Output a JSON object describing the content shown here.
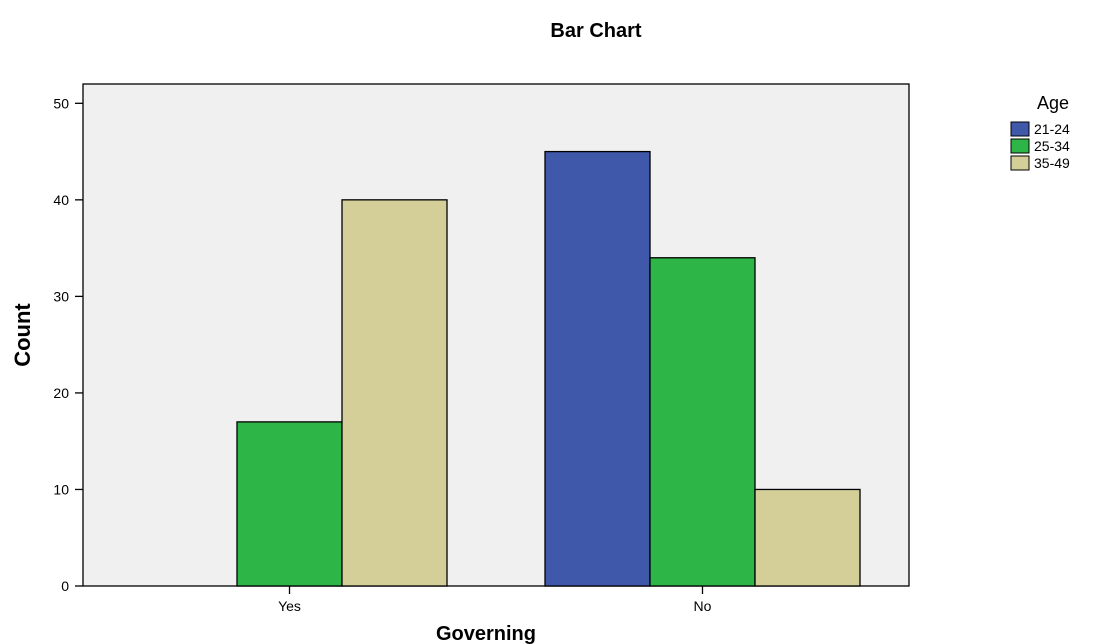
{
  "chart_data": {
    "type": "bar",
    "title": "Bar Chart",
    "xlabel": "Governing",
    "ylabel": "Count",
    "categories": [
      "Yes",
      "No"
    ],
    "ylim": [
      0,
      52
    ],
    "yticks": [
      0,
      10,
      20,
      30,
      40,
      50
    ],
    "grid": false,
    "legend": {
      "title": "Age",
      "position": "right"
    },
    "series": [
      {
        "name": "21-24",
        "color": "#3f58aa",
        "values": [
          0,
          45
        ]
      },
      {
        "name": "25-34",
        "color": "#2eb548",
        "values": [
          17,
          34
        ]
      },
      {
        "name": "35-49",
        "color": "#d4cf99",
        "values": [
          40,
          10
        ]
      }
    ],
    "plot_background": "#f0f0f0"
  }
}
